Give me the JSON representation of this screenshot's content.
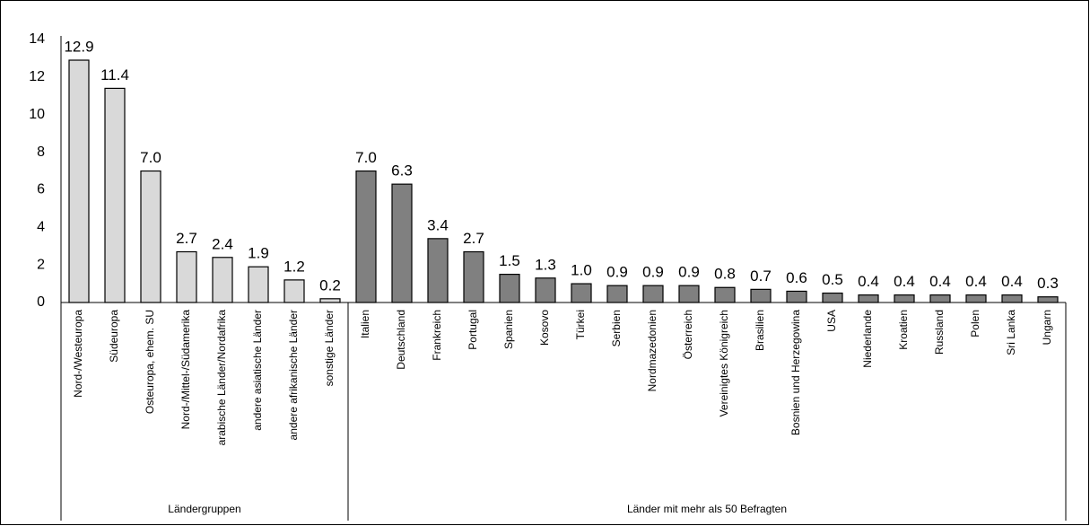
{
  "chart_data": {
    "type": "bar",
    "ylim": [
      0,
      14
    ],
    "yticks": [
      0,
      2,
      4,
      6,
      8,
      10,
      12,
      14
    ],
    "grid": false,
    "groups": [
      {
        "name": "Ländergruppen",
        "color": "#d9d9d9",
        "categories": [
          "Nord-/Westeuropa",
          "Südeuropa",
          "Osteuropa, ehem. SU",
          "Nord-/Mittel-/Südamerika",
          "arabische Länder/Nordafrika",
          "andere asiatische Länder",
          "andere afrikanische Länder",
          "sonstige Länder"
        ],
        "values": [
          12.9,
          11.4,
          7.0,
          2.7,
          2.4,
          1.9,
          1.2,
          0.2
        ],
        "value_labels": [
          "12.9",
          "11.4",
          "7.0",
          "2.7",
          "2.4",
          "1.9",
          "1.2",
          "0.2"
        ]
      },
      {
        "name": "Länder mit mehr als 50 Befragten",
        "color": "#808080",
        "categories": [
          "Italien",
          "Deutschland",
          "Frankreich",
          "Portugal",
          "Spanien",
          "Kosovo",
          "Türkei",
          "Serbien",
          "Nordmazedonien",
          "Österreich",
          "Vereinigtes Königreich",
          "Brasilien",
          "Bosnien und Herzegowina",
          "USA",
          "Niederlande",
          "Kroatien",
          "Russland",
          "Polen",
          "Sri Lanka",
          "Ungarn"
        ],
        "values": [
          7.0,
          6.3,
          3.4,
          2.7,
          1.5,
          1.3,
          1.0,
          0.9,
          0.9,
          0.9,
          0.8,
          0.7,
          0.6,
          0.5,
          0.4,
          0.4,
          0.4,
          0.4,
          0.4,
          0.3
        ],
        "value_labels": [
          "7.0",
          "6.3",
          "3.4",
          "2.7",
          "1.5",
          "1.3",
          "1.0",
          "0.9",
          "0.9",
          "0.9",
          "0.8",
          "0.7",
          "0.6",
          "0.5",
          "0.4",
          "0.4",
          "0.4",
          "0.4",
          "0.4",
          "0.3"
        ]
      }
    ]
  }
}
